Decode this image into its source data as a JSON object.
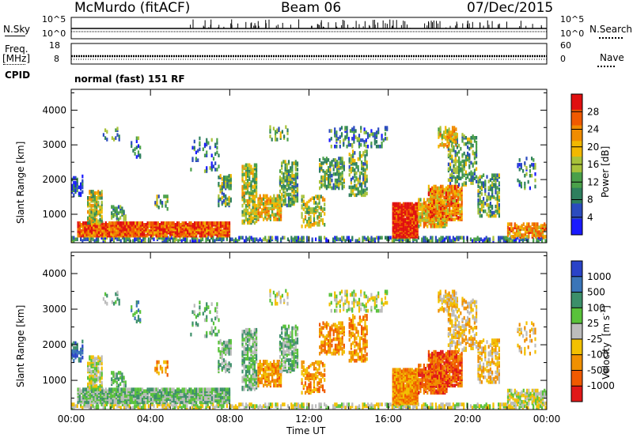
{
  "header": {
    "station": "McMurdo (fitACF)",
    "beam": "Beam 06",
    "date": "07/Dec/2015"
  },
  "strip_labels": {
    "nsky": "N.Sky",
    "nsearch": "N.Search",
    "freq": "Freq.",
    "freq_unit": "[MHz]",
    "nave": "Nave",
    "cpid": "CPID",
    "mode": "normal (fast) 151 RF"
  },
  "strip_ticks": {
    "noise_left": [
      "10^5",
      "10^0"
    ],
    "noise_right": [
      "10^5",
      "10^0"
    ],
    "freq_left": [
      "18",
      "8"
    ],
    "nave_right": [
      "60",
      "0"
    ]
  },
  "colors": {
    "power_scale": [
      "#1a1aff",
      "#2b4bbf",
      "#2e7f5e",
      "#4aa04a",
      "#a8c23a",
      "#f2b800",
      "#f08c00",
      "#f05a00",
      "#e01010"
    ],
    "velocity_scale": [
      "#2a43c8",
      "#3a75b8",
      "#3c8f6a",
      "#59c23a",
      "#bcbcbc",
      "#f2c000",
      "#f09000",
      "#f05a00",
      "#e01818"
    ]
  },
  "chart_data": [
    {
      "type": "heatmap",
      "panel": "power",
      "ylabel": "Slant Range [km]",
      "xlabel": "",
      "x_ticks": [
        "00:00",
        "04:00",
        "08:00",
        "12:00",
        "16:00",
        "20:00",
        "00:00"
      ],
      "y_ticks": [
        1000,
        2000,
        3000,
        4000
      ],
      "ylim": [
        180,
        4600
      ],
      "colorbar_label": "Power [dB]",
      "colorbar_ticks": [
        4,
        8,
        12,
        16,
        20,
        24,
        28
      ],
      "colorbar_range": [
        0,
        32
      ]
    },
    {
      "type": "heatmap",
      "panel": "velocity",
      "ylabel": "Slant Range [km]",
      "xlabel": "Time UT",
      "x_ticks": [
        "00:00",
        "04:00",
        "08:00",
        "12:00",
        "16:00",
        "20:00",
        "00:00"
      ],
      "y_ticks": [
        1000,
        2000,
        3000,
        4000
      ],
      "ylim": [
        180,
        4600
      ],
      "colorbar_label": "Velocity",
      "colorbar_unit": "[m s",
      "colorbar_unit_sup": "-1",
      "colorbar_unit_end": "]",
      "colorbar_ticks": [
        "1000",
        "500",
        "100",
        "25",
        "-25",
        "-100",
        "-500",
        "-1000"
      ]
    }
  ]
}
